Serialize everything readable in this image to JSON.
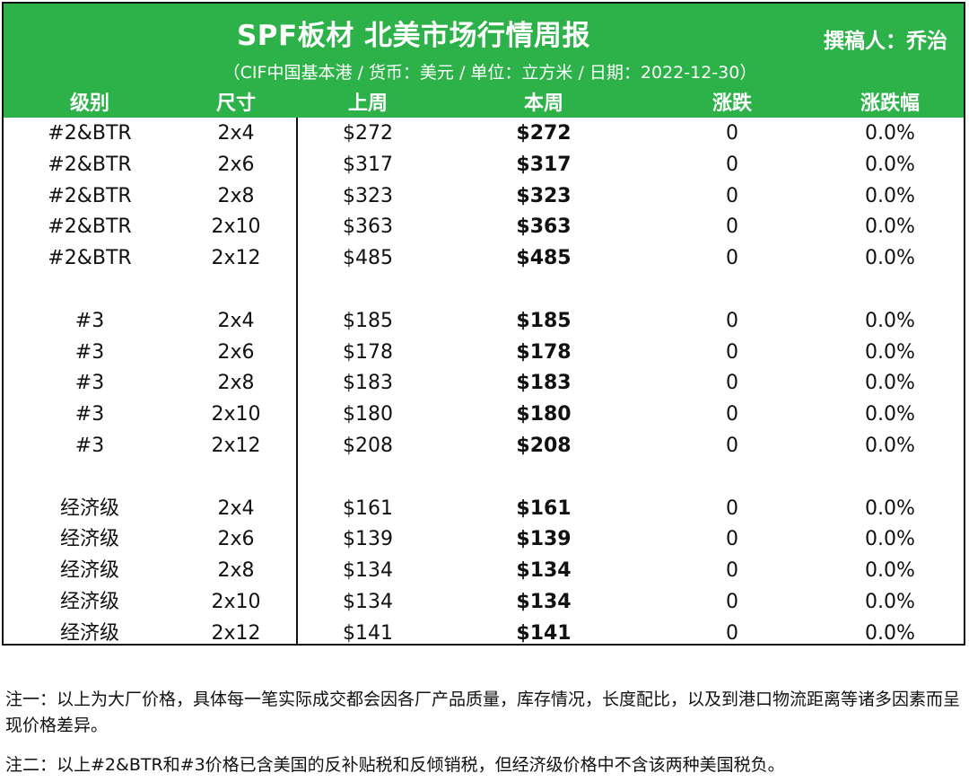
{
  "header": {
    "title": "SPF板材 北美市场行情周报",
    "author": "撰稿人：乔治",
    "subtitle": "（CIF中国基本港 / 货币：美元 / 单位：立方米 / 日期：2022-12-30）"
  },
  "columns": [
    "级别",
    "尺寸",
    "上周",
    "本周",
    "涨跌",
    "涨跌幅"
  ],
  "colors": {
    "header_bg": "#2db24a",
    "header_text": "#ffffff",
    "border": "#111111"
  },
  "groups": [
    {
      "rows": [
        {
          "grade": "#2&BTR",
          "size": "2x4",
          "last": "$272",
          "this": "$272",
          "change": "0",
          "pct": "0.0%"
        },
        {
          "grade": "#2&BTR",
          "size": "2x6",
          "last": "$317",
          "this": "$317",
          "change": "0",
          "pct": "0.0%"
        },
        {
          "grade": "#2&BTR",
          "size": "2x8",
          "last": "$323",
          "this": "$323",
          "change": "0",
          "pct": "0.0%"
        },
        {
          "grade": "#2&BTR",
          "size": "2x10",
          "last": "$363",
          "this": "$363",
          "change": "0",
          "pct": "0.0%"
        },
        {
          "grade": "#2&BTR",
          "size": "2x12",
          "last": "$485",
          "this": "$485",
          "change": "0",
          "pct": "0.0%"
        }
      ]
    },
    {
      "rows": [
        {
          "grade": "#3",
          "size": "2x4",
          "last": "$185",
          "this": "$185",
          "change": "0",
          "pct": "0.0%"
        },
        {
          "grade": "#3",
          "size": "2x6",
          "last": "$178",
          "this": "$178",
          "change": "0",
          "pct": "0.0%"
        },
        {
          "grade": "#3",
          "size": "2x8",
          "last": "$183",
          "this": "$183",
          "change": "0",
          "pct": "0.0%"
        },
        {
          "grade": "#3",
          "size": "2x10",
          "last": "$180",
          "this": "$180",
          "change": "0",
          "pct": "0.0%"
        },
        {
          "grade": "#3",
          "size": "2x12",
          "last": "$208",
          "this": "$208",
          "change": "0",
          "pct": "0.0%"
        }
      ]
    },
    {
      "rows": [
        {
          "grade": "经济级",
          "size": "2x4",
          "last": "$161",
          "this": "$161",
          "change": "0",
          "pct": "0.0%"
        },
        {
          "grade": "经济级",
          "size": "2x6",
          "last": "$139",
          "this": "$139",
          "change": "0",
          "pct": "0.0%"
        },
        {
          "grade": "经济级",
          "size": "2x8",
          "last": "$134",
          "this": "$134",
          "change": "0",
          "pct": "0.0%"
        },
        {
          "grade": "经济级",
          "size": "2x10",
          "last": "$134",
          "this": "$134",
          "change": "0",
          "pct": "0.0%"
        },
        {
          "grade": "经济级",
          "size": "2x12",
          "last": "$141",
          "this": "$141",
          "change": "0",
          "pct": "0.0%"
        }
      ]
    }
  ],
  "notes": {
    "note1": "注一：以上为大厂价格，具体每一笔实际成交都会因各厂产品质量，库存情况，长度配比，以及到港口物流距离等诸多因素而呈现价格差异。",
    "note2": "注二：以上#2&BTR和#3价格已含美国的反补贴税和反倾销税，但经济级价格中不含该两种美国税负。"
  }
}
